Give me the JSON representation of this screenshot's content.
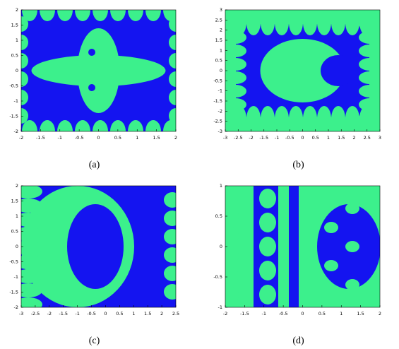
{
  "chart_data": [
    {
      "type": "image",
      "caption": "(a)",
      "xlim": [
        -2,
        2
      ],
      "ylim": [
        -2,
        2
      ],
      "xticks": [
        -2,
        -1.5,
        -1,
        -0.5,
        0,
        0.5,
        1,
        1.5,
        2
      ],
      "yticks": [
        -2,
        -1.5,
        -1,
        -0.5,
        0,
        0.5,
        1,
        1.5,
        2
      ]
    },
    {
      "type": "image",
      "caption": "(b)",
      "xlim": [
        -3,
        3
      ],
      "ylim": [
        -3,
        3
      ],
      "xticks": [
        -3,
        -2.5,
        -2,
        -1.5,
        -1,
        -0.5,
        0,
        0.5,
        1,
        1.5,
        2,
        2.5,
        3
      ],
      "yticks": [
        -3,
        -2.5,
        -2,
        -1.5,
        -1,
        -0.5,
        0,
        0.5,
        1,
        1.5,
        2,
        2.5,
        3
      ]
    },
    {
      "type": "image",
      "caption": "(c)",
      "xlim": [
        -3,
        2.5
      ],
      "ylim": [
        -2,
        2
      ],
      "xticks": [
        -3,
        -2.5,
        -2,
        -1.5,
        -1,
        -0.5,
        0,
        0.5,
        1,
        1.5,
        2,
        2.5
      ],
      "yticks": [
        -2,
        -1.5,
        -1,
        -0.5,
        0,
        0.5,
        1,
        1.5,
        2
      ]
    },
    {
      "type": "image",
      "caption": "(d)",
      "xlim": [
        -2,
        2
      ],
      "ylim": [
        -1,
        1
      ],
      "xticks": [
        -2,
        -1.5,
        -1,
        -0.5,
        0,
        0.5,
        1,
        1.5,
        2
      ],
      "yticks": [
        -1,
        -0.5,
        0,
        0.5,
        1
      ]
    }
  ]
}
